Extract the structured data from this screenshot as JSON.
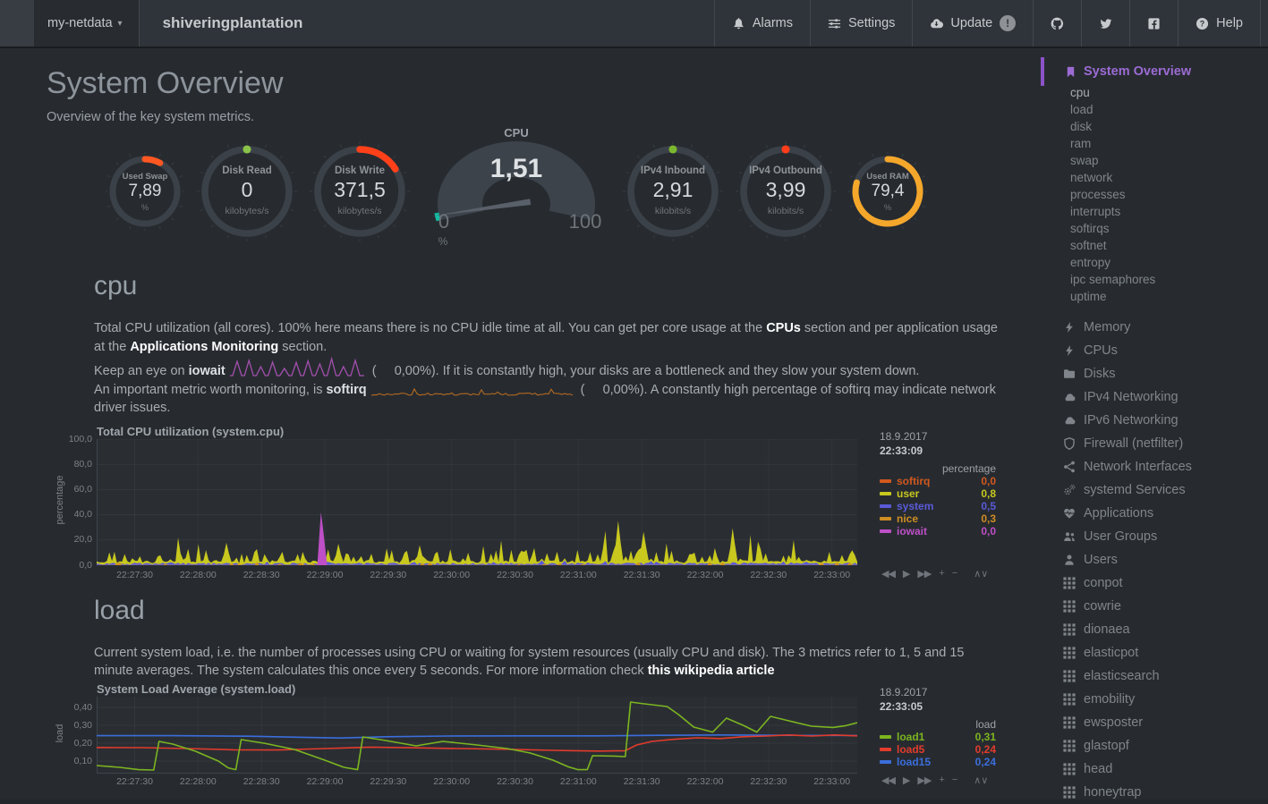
{
  "navbar": {
    "menu": {
      "label": "my-netdata"
    },
    "hostname": "shiveringplantation",
    "buttons": [
      {
        "id": "alarms",
        "label": "Alarms",
        "icon": "bell"
      },
      {
        "id": "settings",
        "label": "Settings",
        "icon": "sliders"
      },
      {
        "id": "update",
        "label": "Update",
        "icon": "cloud-download",
        "badge": "!"
      },
      {
        "id": "github",
        "label": "",
        "icon": "github"
      },
      {
        "id": "twitter",
        "label": "",
        "icon": "twitter"
      },
      {
        "id": "facebook",
        "label": "",
        "icon": "facebook"
      },
      {
        "id": "help",
        "label": "Help",
        "icon": "question"
      }
    ]
  },
  "page": {
    "title": "System Overview",
    "subtitle": "Overview of the key system metrics."
  },
  "gauges_row": {
    "left": [
      {
        "id": "used-swap",
        "title": "Used Swap",
        "value": "7,89",
        "unit": "%",
        "arc_deg": 28,
        "color": "#FF5722",
        "size": "small"
      },
      {
        "id": "disk-read",
        "title": "Disk Read",
        "value": "0",
        "unit": "kilobytes/s",
        "arc_deg": 3,
        "color": "#8BC34A",
        "size": "medium"
      },
      {
        "id": "disk-write",
        "title": "Disk Write",
        "value": "371,5",
        "unit": "kilobytes/s",
        "arc_deg": 58,
        "color": "#FF4019",
        "size": "medium"
      }
    ],
    "cpu_gauge": {
      "title": "CPU",
      "value": "1,51",
      "min": "0",
      "max": "100",
      "unit": "%",
      "percent": 1.51,
      "accent": "#12BCA3"
    },
    "right": [
      {
        "id": "ipv4-inbound",
        "title": "IPv4 Inbound",
        "value": "2,91",
        "unit": "kilobits/s",
        "arc_deg": 3,
        "color": "#7CB82F",
        "size": "medium"
      },
      {
        "id": "ipv4-outbound",
        "title": "IPv4 Outbound",
        "value": "3,99",
        "unit": "kilobits/s",
        "arc_deg": 4,
        "color": "#FF3D1A",
        "size": "medium"
      },
      {
        "id": "used-ram",
        "title": "Used RAM",
        "value": "79,4",
        "unit": "%",
        "arc_deg": 286,
        "color": "#F5A72B",
        "size": "small"
      }
    ]
  },
  "cpu_section": {
    "heading": "cpu",
    "para1": [
      {
        "t": "Total CPU utilization (all cores). 100% here means there is no CPU idle time at all. You can get per core usage at the "
      },
      {
        "t": "CPUs",
        "s": "link"
      },
      {
        "t": " section and per application usage at the "
      },
      {
        "t": "Applications Monitoring",
        "s": "link"
      },
      {
        "t": " section."
      }
    ],
    "para2": [
      {
        "t": "Keep an eye on "
      },
      {
        "t": "iowait",
        "s": "bold"
      },
      {
        "spark": "iowait"
      },
      {
        "t": " (     0,00%). If it is constantly high, your disks are a bottleneck and they slow your system down."
      }
    ],
    "para3": [
      {
        "t": "An important metric worth monitoring, is "
      },
      {
        "t": "softirq",
        "s": "bold"
      },
      {
        "spark": "softirq"
      },
      {
        "t": " (     0,00%). A constantly high percentage of softirq may indicate network driver issues."
      }
    ]
  },
  "load_section": {
    "heading": "load",
    "para1": [
      {
        "t": "Current system load, i.e. the number of processes using CPU or waiting for system resources (usually CPU and disk). The 3 metrics refer to 1, 5 and 15 minute averages. The system calculates this once every 5 seconds. For more information check "
      },
      {
        "t": "this wikipedia article",
        "s": "link"
      }
    ]
  },
  "chart_toolbar": [
    "◀◀",
    "▶",
    "▶▶",
    "+",
    "−",
    "∧∨"
  ],
  "chart_data": [
    {
      "type": "area",
      "id": "cpu",
      "title": "Total CPU utilization (system.cpu)",
      "date": "18.9.2017",
      "time": "22:33:09",
      "unit": "percentage",
      "ylabel": "percentage",
      "ymax": 100,
      "y_ticks": [
        {
          "label": "100,0",
          "v": 100
        },
        {
          "label": "80,0",
          "v": 80
        },
        {
          "label": "60,0",
          "v": 60
        },
        {
          "label": "40,0",
          "v": 40
        },
        {
          "label": "20,0",
          "v": 20
        },
        {
          "label": "0,0",
          "v": 0
        }
      ],
      "x_ticks": [
        "22:27:30",
        "22:28:00",
        "22:28:30",
        "22:29:00",
        "22:29:30",
        "22:30:00",
        "22:30:30",
        "22:31:00",
        "22:31:30",
        "22:32:00",
        "22:32:30",
        "22:33:00"
      ],
      "legend": [
        {
          "name": "softirq",
          "value": "0,0",
          "color": "#D1581E"
        },
        {
          "name": "user",
          "value": "0,8",
          "color": "#C8C81E"
        },
        {
          "name": "system",
          "value": "0,5",
          "color": "#5A5AD8"
        },
        {
          "name": "nice",
          "value": "0,3",
          "color": "#CE8D22"
        },
        {
          "name": "iowait",
          "value": "0,0",
          "color": "#BE4FC6"
        }
      ],
      "seed": 11,
      "forced_spikes": [
        [
          0.17,
          16
        ],
        [
          0.425,
          14
        ],
        [
          0.685,
          34
        ],
        [
          0.72,
          26
        ],
        [
          0.835,
          27
        ]
      ],
      "iowait_spike": {
        "x": 0.296,
        "h": 42
      }
    },
    {
      "type": "line",
      "id": "load",
      "title": "System Load Average (system.load)",
      "date": "18.9.2017",
      "time": "22:33:05",
      "unit": "load",
      "ylabel": "load",
      "ymin": 0.03,
      "ymax": 0.46,
      "y_ticks": [
        {
          "label": "0,40",
          "v": 0.4
        },
        {
          "label": "0,30",
          "v": 0.3
        },
        {
          "label": "0,20",
          "v": 0.2
        },
        {
          "label": "0,10",
          "v": 0.1
        }
      ],
      "x_ticks": [
        "22:27:30",
        "22:28:00",
        "22:28:30",
        "22:29:00",
        "22:29:30",
        "22:30:00",
        "22:30:30",
        "22:31:00",
        "22:31:30",
        "22:32:00",
        "22:32:30",
        "22:33:00"
      ],
      "legend": [
        {
          "name": "load1",
          "value": "0,31",
          "color": "#7CB520"
        },
        {
          "name": "load5",
          "value": "0,24",
          "color": "#E33B2C"
        },
        {
          "name": "load15",
          "value": "0,24",
          "color": "#3B6EDC"
        }
      ],
      "series": [
        {
          "name": "load1",
          "color": "#7CB520",
          "points": [
            [
              0,
              0.075
            ],
            [
              0.03,
              0.065
            ],
            [
              0.055,
              0.052
            ],
            [
              0.075,
              0.05
            ],
            [
              0.082,
              0.21
            ],
            [
              0.1,
              0.195
            ],
            [
              0.13,
              0.155
            ],
            [
              0.16,
              0.1
            ],
            [
              0.173,
              0.062
            ],
            [
              0.183,
              0.052
            ],
            [
              0.19,
              0.22
            ],
            [
              0.22,
              0.2
            ],
            [
              0.26,
              0.165
            ],
            [
              0.3,
              0.105
            ],
            [
              0.325,
              0.065
            ],
            [
              0.343,
              0.052
            ],
            [
              0.35,
              0.235
            ],
            [
              0.38,
              0.215
            ],
            [
              0.42,
              0.185
            ],
            [
              0.455,
              0.21
            ],
            [
              0.5,
              0.19
            ],
            [
              0.54,
              0.17
            ],
            [
              0.57,
              0.145
            ],
            [
              0.6,
              0.105
            ],
            [
              0.62,
              0.068
            ],
            [
              0.633,
              0.052
            ],
            [
              0.645,
              0.052
            ],
            [
              0.652,
              0.13
            ],
            [
              0.68,
              0.128
            ],
            [
              0.695,
              0.125
            ],
            [
              0.702,
              0.43
            ],
            [
              0.72,
              0.42
            ],
            [
              0.75,
              0.405
            ],
            [
              0.765,
              0.36
            ],
            [
              0.785,
              0.29
            ],
            [
              0.81,
              0.262
            ],
            [
              0.828,
              0.34
            ],
            [
              0.85,
              0.3
            ],
            [
              0.868,
              0.262
            ],
            [
              0.886,
              0.35
            ],
            [
              0.91,
              0.325
            ],
            [
              0.94,
              0.295
            ],
            [
              0.968,
              0.288
            ],
            [
              0.985,
              0.298
            ],
            [
              1,
              0.315
            ]
          ]
        },
        {
          "name": "load5",
          "color": "#E33B2C",
          "points": [
            [
              0,
              0.176
            ],
            [
              0.06,
              0.175
            ],
            [
              0.12,
              0.17
            ],
            [
              0.18,
              0.163
            ],
            [
              0.24,
              0.162
            ],
            [
              0.3,
              0.17
            ],
            [
              0.36,
              0.178
            ],
            [
              0.42,
              0.174
            ],
            [
              0.48,
              0.17
            ],
            [
              0.54,
              0.166
            ],
            [
              0.6,
              0.16
            ],
            [
              0.66,
              0.156
            ],
            [
              0.695,
              0.158
            ],
            [
              0.71,
              0.19
            ],
            [
              0.73,
              0.21
            ],
            [
              0.76,
              0.222
            ],
            [
              0.79,
              0.23
            ],
            [
              0.82,
              0.226
            ],
            [
              0.85,
              0.236
            ],
            [
              0.88,
              0.24
            ],
            [
              0.91,
              0.246
            ],
            [
              0.94,
              0.24
            ],
            [
              0.97,
              0.246
            ],
            [
              1,
              0.241
            ]
          ]
        },
        {
          "name": "load15",
          "color": "#3B6EDC",
          "points": [
            [
              0,
              0.242
            ],
            [
              0.1,
              0.242
            ],
            [
              0.2,
              0.239
            ],
            [
              0.27,
              0.233
            ],
            [
              0.32,
              0.229
            ],
            [
              0.38,
              0.236
            ],
            [
              0.46,
              0.24
            ],
            [
              0.56,
              0.241
            ],
            [
              0.66,
              0.241
            ],
            [
              0.74,
              0.244
            ],
            [
              0.82,
              0.246
            ],
            [
              0.9,
              0.244
            ],
            [
              1,
              0.243
            ]
          ]
        }
      ]
    }
  ],
  "sidebar": {
    "active": {
      "label": "System Overview",
      "icon": "bookmark",
      "color": "#9B6BD3",
      "bar_color": "#8C52C8"
    },
    "subitems": [
      "cpu",
      "load",
      "disk",
      "ram",
      "swap",
      "network",
      "processes",
      "interrupts",
      "softirqs",
      "softnet",
      "entropy",
      "ipc semaphores",
      "uptime"
    ],
    "sections": [
      {
        "label": "Memory",
        "icon": "bolt"
      },
      {
        "label": "CPUs",
        "icon": "bolt"
      },
      {
        "label": "Disks",
        "icon": "folder"
      },
      {
        "label": "IPv4 Networking",
        "icon": "cloud"
      },
      {
        "label": "IPv6 Networking",
        "icon": "cloud"
      },
      {
        "label": "Firewall (netfilter)",
        "icon": "shield"
      },
      {
        "label": "Network Interfaces",
        "icon": "share"
      },
      {
        "label": "systemd Services",
        "icon": "gears"
      },
      {
        "label": "Applications",
        "icon": "heartbeat"
      },
      {
        "label": "User Groups",
        "icon": "users"
      },
      {
        "label": "Users",
        "icon": "user"
      },
      {
        "label": "conpot",
        "icon": "grid"
      },
      {
        "label": "cowrie",
        "icon": "grid"
      },
      {
        "label": "dionaea",
        "icon": "grid"
      },
      {
        "label": "elasticpot",
        "icon": "grid"
      },
      {
        "label": "elasticsearch",
        "icon": "grid"
      },
      {
        "label": "emobility",
        "icon": "grid"
      },
      {
        "label": "ewsposter",
        "icon": "grid"
      },
      {
        "label": "glastopf",
        "icon": "grid"
      },
      {
        "label": "head",
        "icon": "grid"
      },
      {
        "label": "honeytrap",
        "icon": "grid"
      }
    ]
  }
}
